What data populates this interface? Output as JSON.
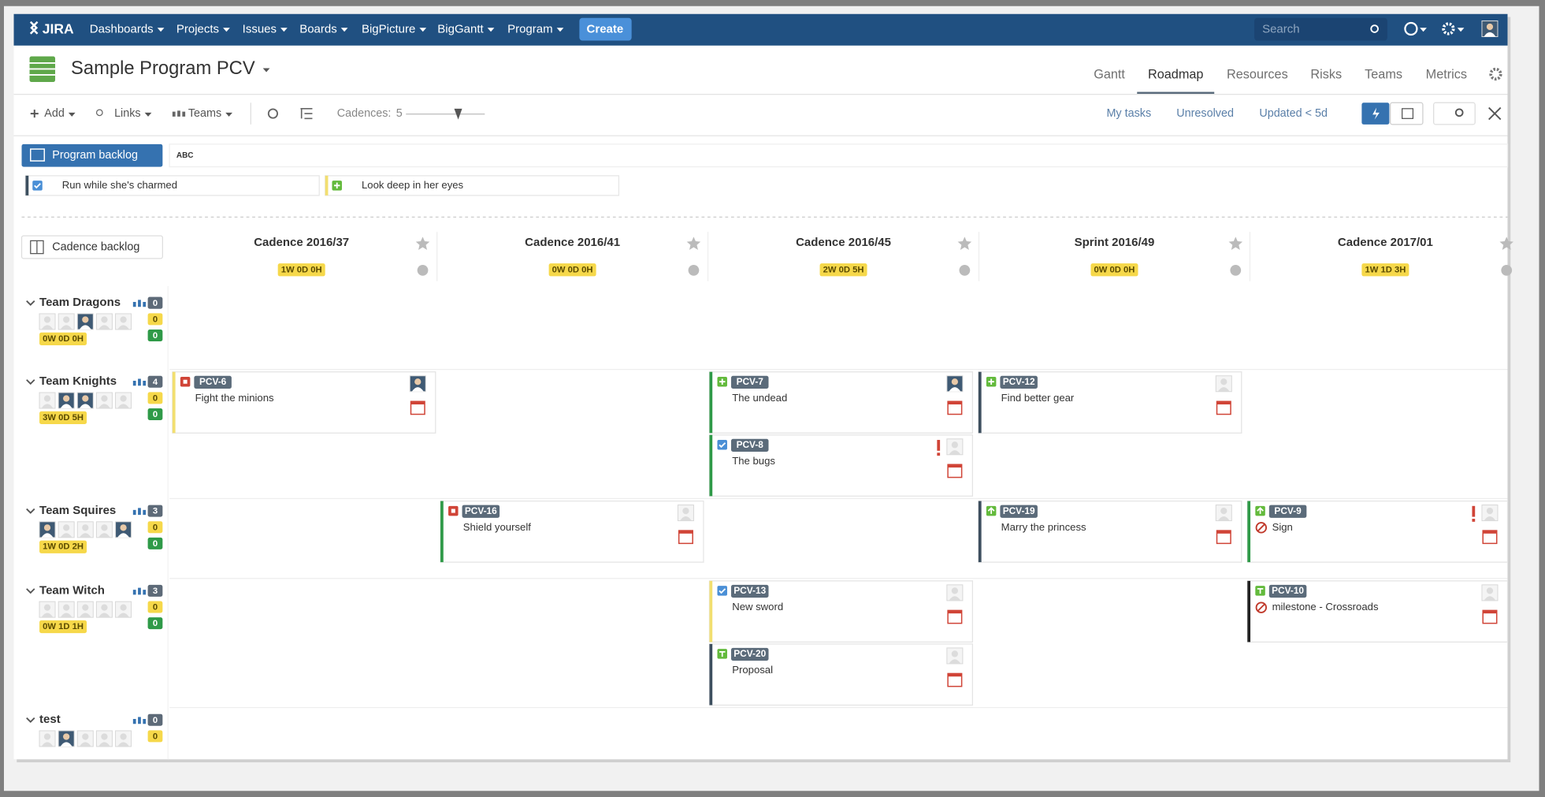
{
  "nav": {
    "logo": "JIRA",
    "menus": [
      "Dashboards",
      "Projects",
      "Issues",
      "Boards",
      "BigPicture",
      "BigGantt",
      "Program"
    ],
    "create": "Create",
    "search": "Search"
  },
  "header": {
    "title": "Sample Program PCV",
    "tabs": [
      {
        "label": "Gantt",
        "active": false
      },
      {
        "label": "Roadmap",
        "active": true
      },
      {
        "label": "Resources",
        "active": false
      },
      {
        "label": "Risks",
        "active": false
      },
      {
        "label": "Teams",
        "active": false
      },
      {
        "label": "Metrics",
        "active": false
      }
    ]
  },
  "toolbar": {
    "add": "Add",
    "links": "Links",
    "teams": "Teams",
    "cadences_label": "Cadences:",
    "cadences_value": 5,
    "filters": [
      "My tasks",
      "Unresolved",
      "Updated < 5d"
    ]
  },
  "backlog": {
    "button": "Program backlog",
    "filter_badge": "ABC",
    "items": [
      {
        "label": "Run while she's charmed",
        "icon": "task"
      },
      {
        "label": "Look deep in her eyes",
        "icon": "story"
      }
    ]
  },
  "cadence_backlog": "Cadence backlog",
  "cadences": [
    {
      "name": "Cadence 2016/37",
      "duration": "1W 0D 0H"
    },
    {
      "name": "Cadence 2016/41",
      "duration": "0W 0D 0H"
    },
    {
      "name": "Cadence 2016/45",
      "duration": "2W 0D 5H"
    },
    {
      "name": "Sprint 2016/49",
      "duration": "0W 0D 0H"
    },
    {
      "name": "Cadence 2017/01",
      "duration": "1W 1D 3H"
    }
  ],
  "teams": [
    {
      "name": "Team Dragons",
      "counts": [
        0,
        0,
        0
      ],
      "capacity": "0W 0D 0H",
      "cards": []
    },
    {
      "name": "Team Knights",
      "counts": [
        4,
        0,
        0
      ],
      "capacity": "3W 0D 5H",
      "cards": [
        {
          "cadence": 0,
          "key": "PCV-6",
          "summary": "Fight the minions",
          "icon": "bug",
          "border": "#f2df70",
          "flagged": false,
          "blocked": false
        },
        {
          "cadence": 2,
          "key": "PCV-7",
          "summary": "The undead",
          "icon": "story",
          "border": "#2f9a48",
          "flagged": false,
          "blocked": false
        },
        {
          "cadence": 2,
          "key": "PCV-8",
          "summary": "The bugs",
          "icon": "task",
          "border": "#2f9a48",
          "flagged": true,
          "blocked": false
        },
        {
          "cadence": 3,
          "key": "PCV-12",
          "summary": "Find better gear",
          "icon": "story",
          "border": "#3d4f5f",
          "flagged": false,
          "blocked": false
        }
      ]
    },
    {
      "name": "Team Squires",
      "counts": [
        3,
        0,
        0
      ],
      "capacity": "1W 0D 2H",
      "cards": [
        {
          "cadence": 1,
          "key": "PCV-16",
          "summary": "Shield yourself",
          "icon": "bug",
          "border": "#2f9a48",
          "flagged": false,
          "blocked": false
        },
        {
          "cadence": 3,
          "key": "PCV-19",
          "summary": "Marry the princess",
          "icon": "improvement",
          "border": "#3d4f5f",
          "flagged": false,
          "blocked": false
        },
        {
          "cadence": 4,
          "key": "PCV-9",
          "summary": "Sign",
          "icon": "improvement",
          "border": "#2f9a48",
          "flagged": true,
          "blocked": true
        }
      ]
    },
    {
      "name": "Team Witch",
      "counts": [
        3,
        0,
        0
      ],
      "capacity": "0W 1D 1H",
      "cards": [
        {
          "cadence": 2,
          "key": "PCV-13",
          "summary": "New sword",
          "icon": "task",
          "border": "#f2df70",
          "flagged": false,
          "blocked": false
        },
        {
          "cadence": 2,
          "key": "PCV-20",
          "summary": "Proposal",
          "icon": "feature",
          "border": "#3d4f5f",
          "flagged": false,
          "blocked": false
        },
        {
          "cadence": 4,
          "key": "PCV-10",
          "summary": "milestone - Crossroads",
          "icon": "feature",
          "border": "#222222",
          "flagged": false,
          "blocked": true
        }
      ]
    },
    {
      "name": "test",
      "counts": [
        0,
        0
      ],
      "cards": []
    }
  ]
}
